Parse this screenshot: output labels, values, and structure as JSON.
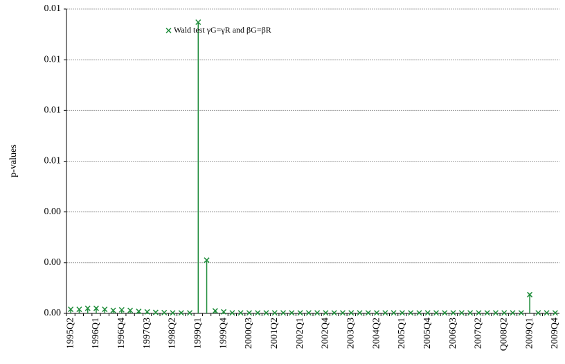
{
  "chart_data": {
    "type": "stem",
    "y_label": "p-values",
    "categories": [
      "1995Q2",
      null,
      null,
      "1996Q1",
      null,
      null,
      "1996Q4",
      null,
      null,
      "1997Q3",
      null,
      null,
      "1998Q2",
      null,
      null,
      "1999Q1",
      null,
      null,
      "1999Q4",
      null,
      null,
      "2000Q3",
      null,
      null,
      "2001Q2",
      null,
      null,
      "2002Q1",
      null,
      null,
      "2002Q4",
      null,
      null,
      "2003Q3",
      null,
      null,
      "2004Q2",
      null,
      null,
      "2005Q1",
      null,
      null,
      "2005Q4",
      null,
      null,
      "2006Q3",
      null,
      null,
      "2007Q2",
      null,
      null,
      "Q008Q2",
      null,
      null,
      "2009Q1",
      null,
      null,
      "2009Q4"
    ],
    "series": [
      {
        "name": "Wald test γG=γR and βG=βR",
        "color": "#1e8c3a",
        "values": [
          0.00016,
          0.00016,
          0.0002,
          0.0002,
          0.00016,
          0.00012,
          0.00014,
          0.00012,
          8e-05,
          6e-05,
          4e-05,
          3e-05,
          2e-05,
          2e-05,
          2e-05,
          0.01148,
          0.0021,
          0.0001,
          6e-05,
          2e-05,
          2e-05,
          2e-05,
          2e-05,
          2e-05,
          2e-05,
          2e-05,
          2e-05,
          2e-05,
          2e-05,
          2e-05,
          2e-05,
          2e-05,
          2e-05,
          2e-05,
          2e-05,
          2e-05,
          2e-05,
          2e-05,
          2e-05,
          2e-05,
          2e-05,
          2e-05,
          2e-05,
          2e-05,
          2e-05,
          2e-05,
          2e-05,
          2e-05,
          2e-05,
          2e-05,
          2e-05,
          2e-05,
          2e-05,
          2e-05,
          0.00074,
          2e-05,
          2e-05,
          2e-05
        ]
      }
    ],
    "ylim": [
      0,
      0.012
    ],
    "yticks": [
      {
        "value": 0,
        "label": "0.00"
      },
      {
        "value": 0.002,
        "label": "0.00"
      },
      {
        "value": 0.004,
        "label": "0.00"
      },
      {
        "value": 0.006,
        "label": "0.01"
      },
      {
        "value": 0.008,
        "label": "0.01"
      },
      {
        "value": 0.01,
        "label": "0.01"
      },
      {
        "value": 0.012,
        "label": "0.01"
      }
    ],
    "grid": true
  }
}
